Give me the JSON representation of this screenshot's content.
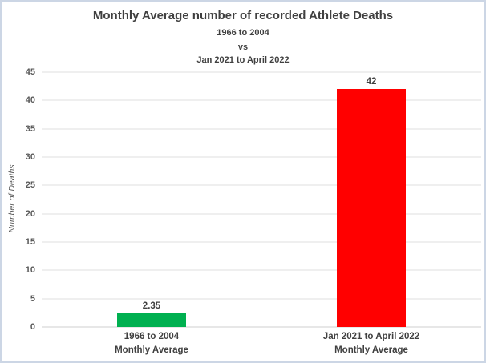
{
  "chart_data": {
    "type": "bar",
    "title": "Monthly Average number of recorded Athlete Deaths",
    "subtitle_lines": [
      "1966 to 2004",
      "vs",
      "Jan 2021 to April 2022"
    ],
    "ylabel": "Number of Deaths",
    "xlabel": "",
    "ylim": [
      0,
      45
    ],
    "ytick_step": 5,
    "grid": true,
    "legend": false,
    "categories": [
      [
        "1966 to 2004",
        "Monthly Average"
      ],
      [
        "Jan 2021 to April 2022",
        "Monthly Average"
      ]
    ],
    "bars": [
      {
        "value": 2.35,
        "label": "2.35",
        "color": "#00B050"
      },
      {
        "value": 42,
        "label": "42",
        "color": "#FF0000"
      }
    ]
  },
  "colors": {
    "title_text": "#404040",
    "axis_text": "#595959",
    "gridline": "#efefef",
    "page_border": "#ccd6e5",
    "background": "#ffffff",
    "bar_past": "#00B050",
    "bar_recent": "#FF0000"
  }
}
